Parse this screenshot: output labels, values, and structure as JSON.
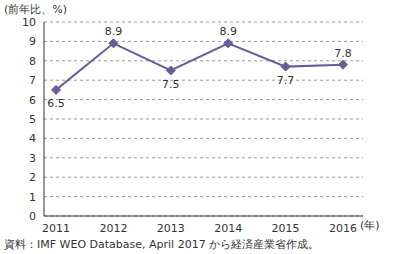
{
  "chart_data": {
    "type": "line",
    "ylabel": "(前年比、%)",
    "xlabel": "(年)",
    "source": "資料：IMF WEO Database, April 2017 から経済産業省作成。",
    "categories": [
      "2011",
      "2012",
      "2013",
      "2014",
      "2015",
      "2016"
    ],
    "values": [
      6.5,
      8.9,
      7.5,
      8.9,
      7.7,
      7.8
    ],
    "color": "#6b5b9a",
    "marker": "diamond",
    "ylim": [
      0,
      10
    ],
    "yticks": [
      0,
      1,
      2,
      3,
      4,
      5,
      6,
      7,
      8,
      9,
      10
    ],
    "grid": true,
    "data_labels": true
  }
}
